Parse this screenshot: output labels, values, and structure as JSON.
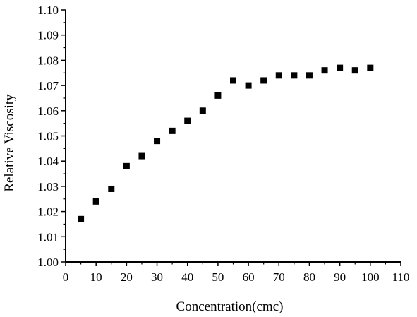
{
  "chart_data": {
    "type": "scatter",
    "title": "",
    "xlabel": "Concentration(cmc)",
    "ylabel": "Relative Viscosity",
    "xlim": [
      0,
      110
    ],
    "ylim": [
      1.0,
      1.1
    ],
    "x_ticks": [
      "0",
      "10",
      "20",
      "30",
      "40",
      "50",
      "60",
      "70",
      "80",
      "90",
      "100",
      "110"
    ],
    "y_ticks": [
      "1.00",
      "1.01",
      "1.02",
      "1.03",
      "1.04",
      "1.05",
      "1.06",
      "1.07",
      "1.08",
      "1.09",
      "1.10"
    ],
    "grid": false,
    "legend": "none",
    "marker": "square",
    "marker_color": "#000000",
    "series": [
      {
        "x": [
          5,
          10,
          15,
          20,
          25,
          30,
          35,
          40,
          45,
          50,
          55,
          60,
          65,
          70,
          75,
          80,
          85,
          90,
          95,
          100
        ],
        "y": [
          1.017,
          1.024,
          1.029,
          1.038,
          1.042,
          1.048,
          1.052,
          1.056,
          1.06,
          1.066,
          1.072,
          1.07,
          1.072,
          1.074,
          1.074,
          1.074,
          1.076,
          1.077,
          1.076,
          1.077
        ]
      }
    ]
  }
}
